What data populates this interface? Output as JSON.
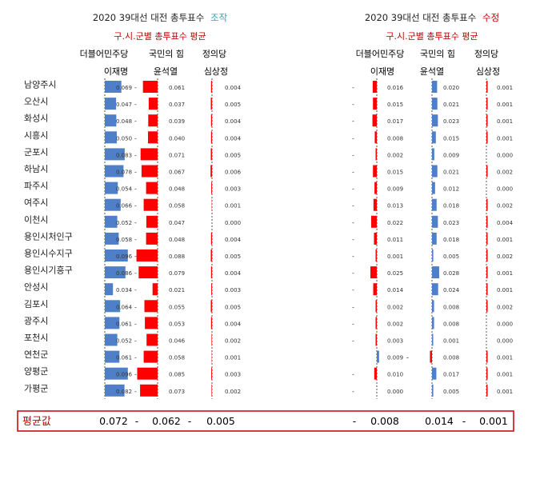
{
  "colors": {
    "bar_blue": "#4f7fc8",
    "bar_red": "#ff0000",
    "accent_teal": "#2aa7b3",
    "accent_red": "#c00000",
    "axis": "#555555",
    "text": "#222222"
  },
  "left_panel": {
    "title": "2020 39대선 대전 총투표수",
    "title_tag": "조작",
    "title_tag_color": "#2aa7b3",
    "subtitle": "구.시.군별 총투표수 평균",
    "parties": [
      "더블어민주당",
      "국민의 힘",
      "정의당"
    ],
    "candidates": [
      "이재명",
      "윤석열",
      "심상정"
    ]
  },
  "right_panel": {
    "title": "2020 39대선 대전 총투표수",
    "title_tag": "수정",
    "title_tag_color": "#c00000",
    "subtitle": "구.시.군별 총투표수 평균",
    "parties": [
      "더블어민주당",
      "국민의 힘",
      "정의당"
    ],
    "candidates": [
      "이재명",
      "윤석열",
      "심상정"
    ]
  },
  "chart_data": [
    {
      "type": "bar",
      "title": "2020 39대선 대전 총투표수 조작",
      "categories": [
        "남양주시",
        "오산시",
        "화성시",
        "시흥시",
        "군포시",
        "하남시",
        "파주시",
        "여주시",
        "이천시",
        "용인시처인구",
        "용인시수지구",
        "용인시기흥구",
        "안성시",
        "김포시",
        "광주시",
        "포천시",
        "연천군",
        "양평군",
        "가평군"
      ],
      "series": [
        {
          "name": "이재명",
          "color": "#4f7fc8",
          "dash": "-",
          "labels": [
            "0.069",
            "0.047",
            "0.048",
            "0.050",
            "0.083",
            "0.078",
            "0.054",
            "0.066",
            "0.052",
            "0.058",
            "0.096",
            "0.086",
            "0.034",
            "0.064",
            "0.061",
            "0.052",
            "0.061",
            "0.096",
            "0.082"
          ],
          "values": [
            0.069,
            0.047,
            0.048,
            0.05,
            0.083,
            0.078,
            0.054,
            0.066,
            0.052,
            0.058,
            0.096,
            0.086,
            0.034,
            0.064,
            0.061,
            0.052,
            0.061,
            0.096,
            0.082
          ]
        },
        {
          "name": "윤석열",
          "color": "#ff0000",
          "dash": "-",
          "labels": [
            "0.061",
            "0.037",
            "0.039",
            "0.040",
            "0.071",
            "0.067",
            "0.048",
            "0.058",
            "0.047",
            "0.048",
            "0.088",
            "0.079",
            "0.021",
            "0.055",
            "0.053",
            "0.046",
            "0.058",
            "0.085",
            "0.073"
          ],
          "values": [
            0.061,
            0.037,
            0.039,
            0.04,
            0.071,
            0.067,
            0.048,
            0.058,
            0.047,
            0.048,
            0.088,
            0.079,
            0.021,
            0.055,
            0.053,
            0.046,
            0.058,
            0.085,
            0.073
          ]
        },
        {
          "name": "심상정",
          "color": "#ff0000",
          "dash": "",
          "labels": [
            "0.004",
            "0.005",
            "0.004",
            "0.004",
            "0.005",
            "0.006",
            "0.003",
            "0.001",
            "0.000",
            "0.004",
            "0.005",
            "0.004",
            "0.003",
            "0.005",
            "0.004",
            "0.002",
            "0.001",
            "0.003",
            "0.002"
          ],
          "values": [
            0.004,
            0.005,
            0.004,
            0.004,
            0.005,
            0.006,
            0.003,
            0.001,
            0.0,
            0.004,
            0.005,
            0.004,
            0.003,
            0.005,
            0.004,
            0.002,
            0.001,
            0.003,
            0.002
          ]
        }
      ],
      "xlim": [
        0,
        0.1
      ]
    },
    {
      "type": "bar",
      "title": "2020 39대선 대전 총투표수 수정",
      "categories": [
        "남양주시",
        "오산시",
        "화성시",
        "시흥시",
        "군포시",
        "하남시",
        "파주시",
        "여주시",
        "이천시",
        "용인시처인구",
        "용인시수지구",
        "용인시기흥구",
        "안성시",
        "김포시",
        "광주시",
        "포천시",
        "연천군",
        "양평군",
        "가평군"
      ],
      "series": [
        {
          "name": "이재명",
          "color": "#ff0000",
          "dash": "-",
          "labels": [
            "0.016",
            "0.015",
            "0.017",
            "0.008",
            "0.002",
            "0.015",
            "0.009",
            "0.013",
            "0.022",
            "0.011",
            "0.001",
            "0.025",
            "0.014",
            "0.002",
            "0.002",
            "0.003",
            "0.009",
            "0.010",
            "0.000"
          ],
          "signs": [
            -1,
            -1,
            -1,
            -1,
            -1,
            -1,
            -1,
            -1,
            -1,
            -1,
            -1,
            -1,
            -1,
            -1,
            -1,
            -1,
            1,
            -1,
            -1
          ],
          "values": [
            -0.016,
            -0.015,
            -0.017,
            -0.008,
            -0.002,
            -0.015,
            -0.009,
            -0.013,
            -0.022,
            -0.011,
            -0.001,
            -0.025,
            -0.014,
            -0.002,
            -0.002,
            -0.003,
            0.009,
            -0.01,
            0.0
          ]
        },
        {
          "name": "윤석열",
          "color": "#4f7fc8",
          "dash": "-",
          "labels": [
            "0.020",
            "0.021",
            "0.023",
            "0.015",
            "0.009",
            "0.021",
            "0.012",
            "0.018",
            "0.023",
            "0.018",
            "0.005",
            "0.028",
            "0.024",
            "0.008",
            "0.008",
            "0.001",
            "0.008",
            "0.017",
            "0.005"
          ],
          "signs": [
            1,
            1,
            1,
            1,
            1,
            1,
            1,
            1,
            1,
            1,
            1,
            1,
            1,
            1,
            1,
            1,
            -1,
            1,
            1
          ],
          "values": [
            0.02,
            0.021,
            0.023,
            0.015,
            0.009,
            0.021,
            0.012,
            0.018,
            0.023,
            0.018,
            0.005,
            0.028,
            0.024,
            0.008,
            0.008,
            0.001,
            -0.008,
            0.017,
            0.005
          ]
        },
        {
          "name": "심상정",
          "color": "#ff0000",
          "dash": "",
          "labels": [
            "0.001",
            "0.001",
            "0.001",
            "0.001",
            "0.000",
            "0.002",
            "0.000",
            "0.002",
            "0.004",
            "0.001",
            "0.002",
            "0.001",
            "0.001",
            "0.002",
            "0.000",
            "0.000",
            "0.001",
            "0.001",
            "0.001"
          ],
          "values": [
            0.001,
            0.001,
            0.001,
            0.001,
            0.0,
            0.002,
            0.0,
            0.002,
            0.004,
            0.001,
            0.002,
            0.001,
            0.001,
            0.002,
            0.0,
            0.0,
            0.001,
            0.001,
            0.001
          ]
        }
      ],
      "xlim": [
        -0.03,
        0.03
      ]
    }
  ],
  "averages": {
    "label": "평균값",
    "left": [
      "0.072",
      "-",
      "0.062",
      "-",
      "0.005"
    ],
    "right": [
      "-",
      "0.008",
      "0.014",
      "-",
      "0.001"
    ]
  }
}
